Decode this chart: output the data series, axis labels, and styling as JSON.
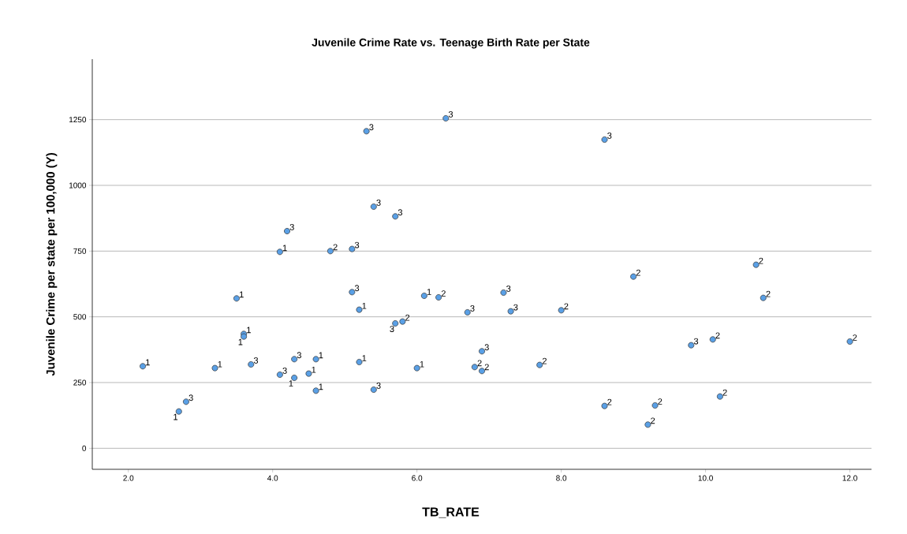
{
  "chart_data": {
    "type": "scatter",
    "title": "Juvenile Crime Rate vs. Teenage Birth Rate per State",
    "xlabel": "TB_RATE",
    "ylabel": "Juvenile Crime per state per 100,000 (Y)",
    "series": [
      {
        "name": "1",
        "color": "#5aa0e6",
        "x": [
          2.2,
          2.7,
          3.2,
          3.5,
          3.6,
          3.6,
          4.1,
          4.3,
          4.5,
          4.6,
          4.6,
          5.2,
          5.2,
          6.1,
          6.0
        ],
        "values": [
          312,
          140,
          305,
          570,
          435,
          425,
          747,
          268,
          284,
          339,
          219,
          527,
          328,
          580,
          305
        ]
      },
      {
        "name": "2",
        "color": "#5aa0e6",
        "x": [
          4.8,
          5.8,
          6.3,
          6.8,
          6.9,
          7.7,
          8.0,
          8.6,
          9.0,
          10.7,
          10.8,
          10.1,
          12.0,
          9.3,
          9.2,
          10.2
        ],
        "values": [
          750,
          482,
          574,
          309,
          294,
          317,
          525,
          161,
          653,
          698,
          572,
          414,
          406,
          163,
          90,
          197
        ]
      },
      {
        "name": "3",
        "color": "#5aa0e6",
        "x": [
          2.8,
          3.7,
          4.2,
          4.1,
          4.3,
          5.1,
          5.1,
          5.3,
          6.4,
          8.6,
          5.4,
          5.7,
          5.4,
          5.7,
          6.7,
          6.9,
          7.2,
          7.3,
          9.8
        ],
        "values": [
          177,
          319,
          826,
          280,
          339,
          758,
          594,
          1206,
          1255,
          1174,
          919,
          882,
          223,
          475,
          517,
          369,
          592,
          521,
          392
        ]
      }
    ],
    "marker": "circle",
    "grid": "y",
    "xlim": [
      1.5,
      12.3
    ],
    "ylim": [
      -80,
      1480
    ],
    "xticks": [
      {
        "value": 2,
        "label": "2.0"
      },
      {
        "value": 4,
        "label": "4.0"
      },
      {
        "value": 6,
        "label": "6.0"
      },
      {
        "value": 8,
        "label": "8.0"
      },
      {
        "value": 10,
        "label": "10.0"
      },
      {
        "value": 12,
        "label": "12.0"
      }
    ],
    "yticks": [
      0,
      250,
      500,
      750,
      1000,
      1250
    ]
  }
}
